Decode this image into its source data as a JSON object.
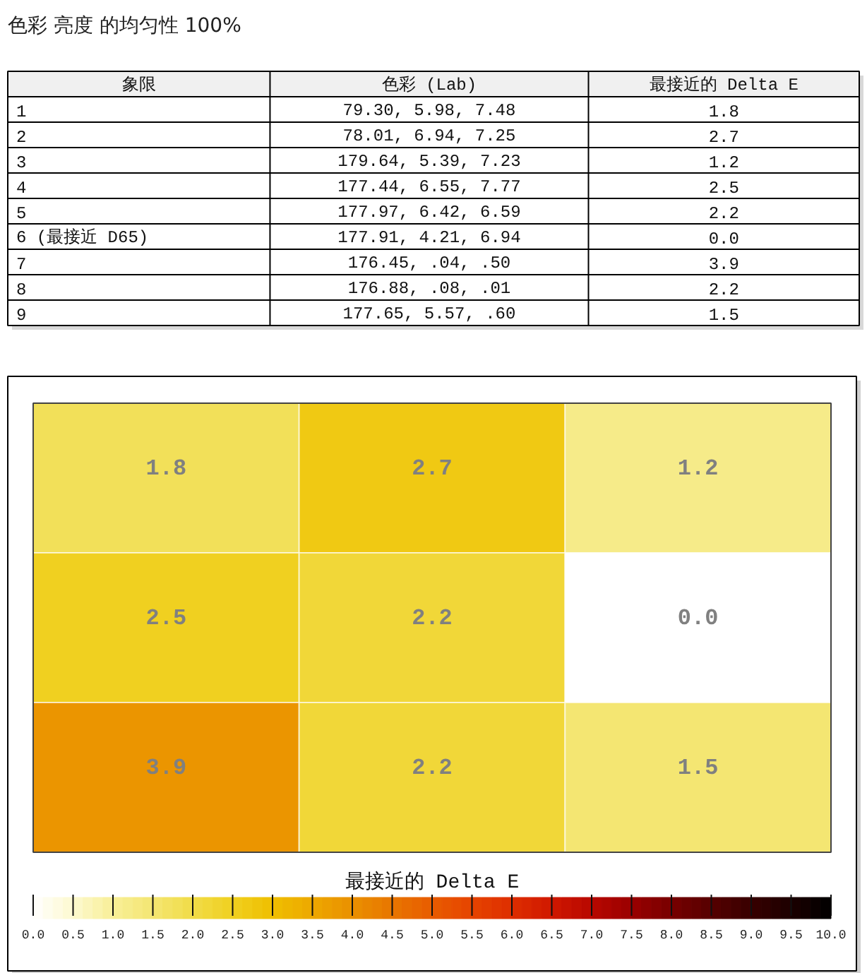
{
  "chart_data": [
    {
      "type": "other",
      "title": "色彩 亮度 的均匀性 100%",
      "categories": [
        "象限",
        "色彩 (Lab)",
        "最接近的 Delta E"
      ],
      "cell_labels": [
        [
          "1",
          "79.30, 5.98, 7.48",
          "1.8"
        ],
        [
          "2",
          "78.01, 6.94, 7.25",
          "2.7"
        ],
        [
          "3",
          "179.64, 5.39, 7.23",
          "1.2"
        ],
        [
          "4",
          "177.44, 6.55, 7.77",
          "2.5"
        ],
        [
          "5",
          "177.97, 6.42, 6.59",
          "2.2"
        ],
        [
          "6 (最接近 D65)",
          "177.91, 4.21, 6.94",
          "0.0"
        ],
        [
          "7",
          "176.45, .04, .50",
          "3.9"
        ],
        [
          "8",
          "176.88, .08, .01",
          "2.2"
        ],
        [
          "9",
          "177.65, 5.57, .60",
          "1.5"
        ]
      ]
    },
    {
      "type": "heatmap",
      "categories": [
        null,
        null,
        null
      ],
      "y_categories": [
        null,
        null,
        null
      ],
      "cells": [
        [
          1.8,
          2.7,
          1.2
        ],
        [
          2.5,
          2.2,
          0.0
        ],
        [
          3.9,
          2.2,
          1.5
        ]
      ],
      "cell_labels": [
        [
          "1.8",
          "2.7",
          "1.2"
        ],
        [
          "2.5",
          "2.2",
          "0.0"
        ],
        [
          "3.9",
          "2.2",
          "1.5"
        ]
      ],
      "clabel": "最接近的 Delta E",
      "clim": [
        0,
        10
      ],
      "cticks": [
        {
          "value": 0,
          "label": "0.0"
        },
        0.5,
        {
          "value": 1,
          "label": "1.0"
        },
        1.5,
        {
          "value": 2,
          "label": "2.0"
        },
        2.5,
        {
          "value": 3,
          "label": "3.0"
        },
        3.5,
        {
          "value": 4,
          "label": "4.0"
        },
        4.5,
        {
          "value": 5,
          "label": "5.0"
        },
        5.5,
        {
          "value": 6,
          "label": "6.0"
        },
        6.5,
        {
          "value": 7,
          "label": "7.0"
        },
        7.5,
        {
          "value": 8,
          "label": "8.0"
        },
        8.5,
        {
          "value": 9,
          "label": "9.0"
        },
        9.5,
        {
          "value": 10,
          "label": "10.0"
        }
      ]
    }
  ]
}
